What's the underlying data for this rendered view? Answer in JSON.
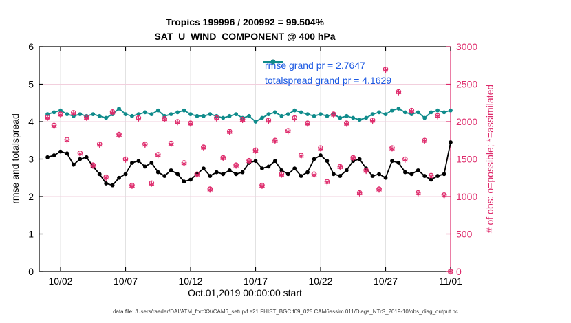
{
  "title": {
    "line1": "Tropics 199996 / 200992 = 99.504%",
    "line2": "SAT_U_WIND_COMPONENT @ 400 hPa"
  },
  "legend": {
    "items": [
      {
        "label": "rmse grand pr = 2.7647",
        "color": "#000000"
      },
      {
        "label": "totalspread grand pr = 4.1629",
        "color": "#0F8B8B"
      }
    ],
    "text_color": "#1B58E2"
  },
  "axes": {
    "left": {
      "label": "rmse and totalspread",
      "ticks": [
        0,
        1,
        2,
        3,
        4,
        5,
        6
      ],
      "range": [
        0,
        6
      ],
      "color": "#000000"
    },
    "right": {
      "label": "# of obs: o=possible; *=assimilated",
      "ticks": [
        0,
        500,
        1000,
        1500,
        2000,
        2500,
        3000
      ],
      "range": [
        0,
        3000
      ],
      "color": "#DE2A6B"
    },
    "x": {
      "label": "Oct.01,2019 00:00:00 start",
      "tick_labels": [
        "10/02",
        "10/07",
        "10/12",
        "10/17",
        "10/22",
        "10/27",
        "11/01"
      ],
      "tick_days": [
        1,
        6,
        11,
        16,
        21,
        26,
        31
      ],
      "range_days": [
        -0.64,
        31
      ]
    }
  },
  "footer": "data file: /Users/raeder/DAI/ATM_forcXX/CAM6_setup/f.e21.FHIST_BGC.f09_025.CAM6assim.011/Diags_NTrS_2019-10/obs_diag_output.nc",
  "colors": {
    "rmse": "#000000",
    "totalspread": "#0F8B8B",
    "obs": "#DE2A6B",
    "grid_h": "#F2CFDD",
    "grid_v": "#E2E2E2"
  },
  "chart_data": {
    "type": "line",
    "x_days": [
      0,
      0.5,
      1,
      1.5,
      2,
      2.5,
      3,
      3.5,
      4,
      4.5,
      5,
      5.5,
      6,
      6.5,
      7,
      7.5,
      8,
      8.5,
      9,
      9.5,
      10,
      10.5,
      11,
      11.5,
      12,
      12.5,
      13,
      13.5,
      14,
      14.5,
      15,
      15.5,
      16,
      16.5,
      17,
      17.5,
      18,
      18.5,
      19,
      19.5,
      20,
      20.5,
      21,
      21.5,
      22,
      22.5,
      23,
      23.5,
      24,
      24.5,
      25,
      25.5,
      26,
      26.5,
      27,
      27.5,
      28,
      28.5,
      29,
      29.5,
      30,
      30.5,
      31
    ],
    "series": [
      {
        "name": "rmse",
        "axis": "left",
        "grand_mean": 2.7647,
        "values": [
          3.05,
          3.1,
          3.2,
          3.15,
          2.85,
          3.0,
          3.05,
          2.8,
          2.6,
          2.35,
          2.3,
          2.5,
          2.6,
          2.9,
          2.95,
          2.8,
          2.9,
          2.65,
          2.55,
          2.7,
          2.6,
          2.4,
          2.45,
          2.6,
          2.75,
          2.55,
          2.65,
          2.6,
          2.7,
          2.6,
          2.65,
          2.9,
          2.95,
          2.75,
          2.8,
          2.95,
          2.7,
          2.6,
          2.75,
          2.55,
          2.65,
          3.0,
          3.1,
          2.95,
          2.6,
          2.55,
          2.7,
          2.95,
          3.0,
          2.75,
          2.55,
          2.6,
          2.5,
          2.95,
          2.9,
          2.65,
          2.6,
          2.7,
          2.55,
          2.45,
          2.55,
          2.6,
          3.45
        ]
      },
      {
        "name": "totalspread",
        "axis": "left",
        "grand_mean": 4.1629,
        "values": [
          4.2,
          4.25,
          4.3,
          4.2,
          4.15,
          4.2,
          4.15,
          4.2,
          4.15,
          4.1,
          4.2,
          4.35,
          4.2,
          4.15,
          4.2,
          4.25,
          4.2,
          4.3,
          4.15,
          4.2,
          4.25,
          4.3,
          4.2,
          4.15,
          4.15,
          4.2,
          4.15,
          4.1,
          4.15,
          4.2,
          4.1,
          4.15,
          4.0,
          4.1,
          4.2,
          4.25,
          4.15,
          4.2,
          4.3,
          4.25,
          4.2,
          4.15,
          4.2,
          4.15,
          4.2,
          4.1,
          4.15,
          4.1,
          4.05,
          4.1,
          4.2,
          4.25,
          4.2,
          4.3,
          4.35,
          4.25,
          4.2,
          4.25,
          4.1,
          4.25,
          4.3,
          4.25,
          4.3
        ]
      }
    ],
    "scatter": [
      {
        "name": "possible",
        "axis": "right",
        "marker": "o",
        "total": 200992,
        "values": [
          2060,
          1950,
          2100,
          1760,
          2120,
          1580,
          2060,
          1420,
          1700,
          1260,
          2130,
          1830,
          1500,
          1150,
          2050,
          1700,
          1180,
          1560,
          2040,
          1710,
          2000,
          1450,
          1980,
          1300,
          1660,
          1100,
          2050,
          1520,
          1870,
          1420,
          2030,
          1480,
          1620,
          1150,
          2020,
          1750,
          1300,
          1880,
          2050,
          1550,
          1980,
          1300,
          1650,
          1200,
          2100,
          1400,
          1980,
          1520,
          1050,
          1350,
          2020,
          1100,
          2700,
          1650,
          2400,
          1500,
          2150,
          1050,
          1750,
          1280,
          2080,
          1020,
          0
        ]
      },
      {
        "name": "assimilated",
        "axis": "right",
        "marker": "*",
        "total": 199996,
        "values": [
          2050,
          1940,
          2090,
          1750,
          2110,
          1570,
          2050,
          1410,
          1690,
          1250,
          2120,
          1820,
          1490,
          1140,
          2040,
          1690,
          1170,
          1550,
          2030,
          1700,
          1990,
          1440,
          1970,
          1290,
          1650,
          1090,
          2040,
          1510,
          1860,
          1410,
          2020,
          1470,
          1610,
          1140,
          2010,
          1740,
          1290,
          1870,
          2040,
          1540,
          1970,
          1290,
          1640,
          1190,
          2090,
          1390,
          1970,
          1510,
          1040,
          1340,
          2010,
          1090,
          2690,
          1640,
          2390,
          1490,
          2140,
          1040,
          1740,
          1270,
          2070,
          1010,
          0
        ]
      }
    ]
  }
}
